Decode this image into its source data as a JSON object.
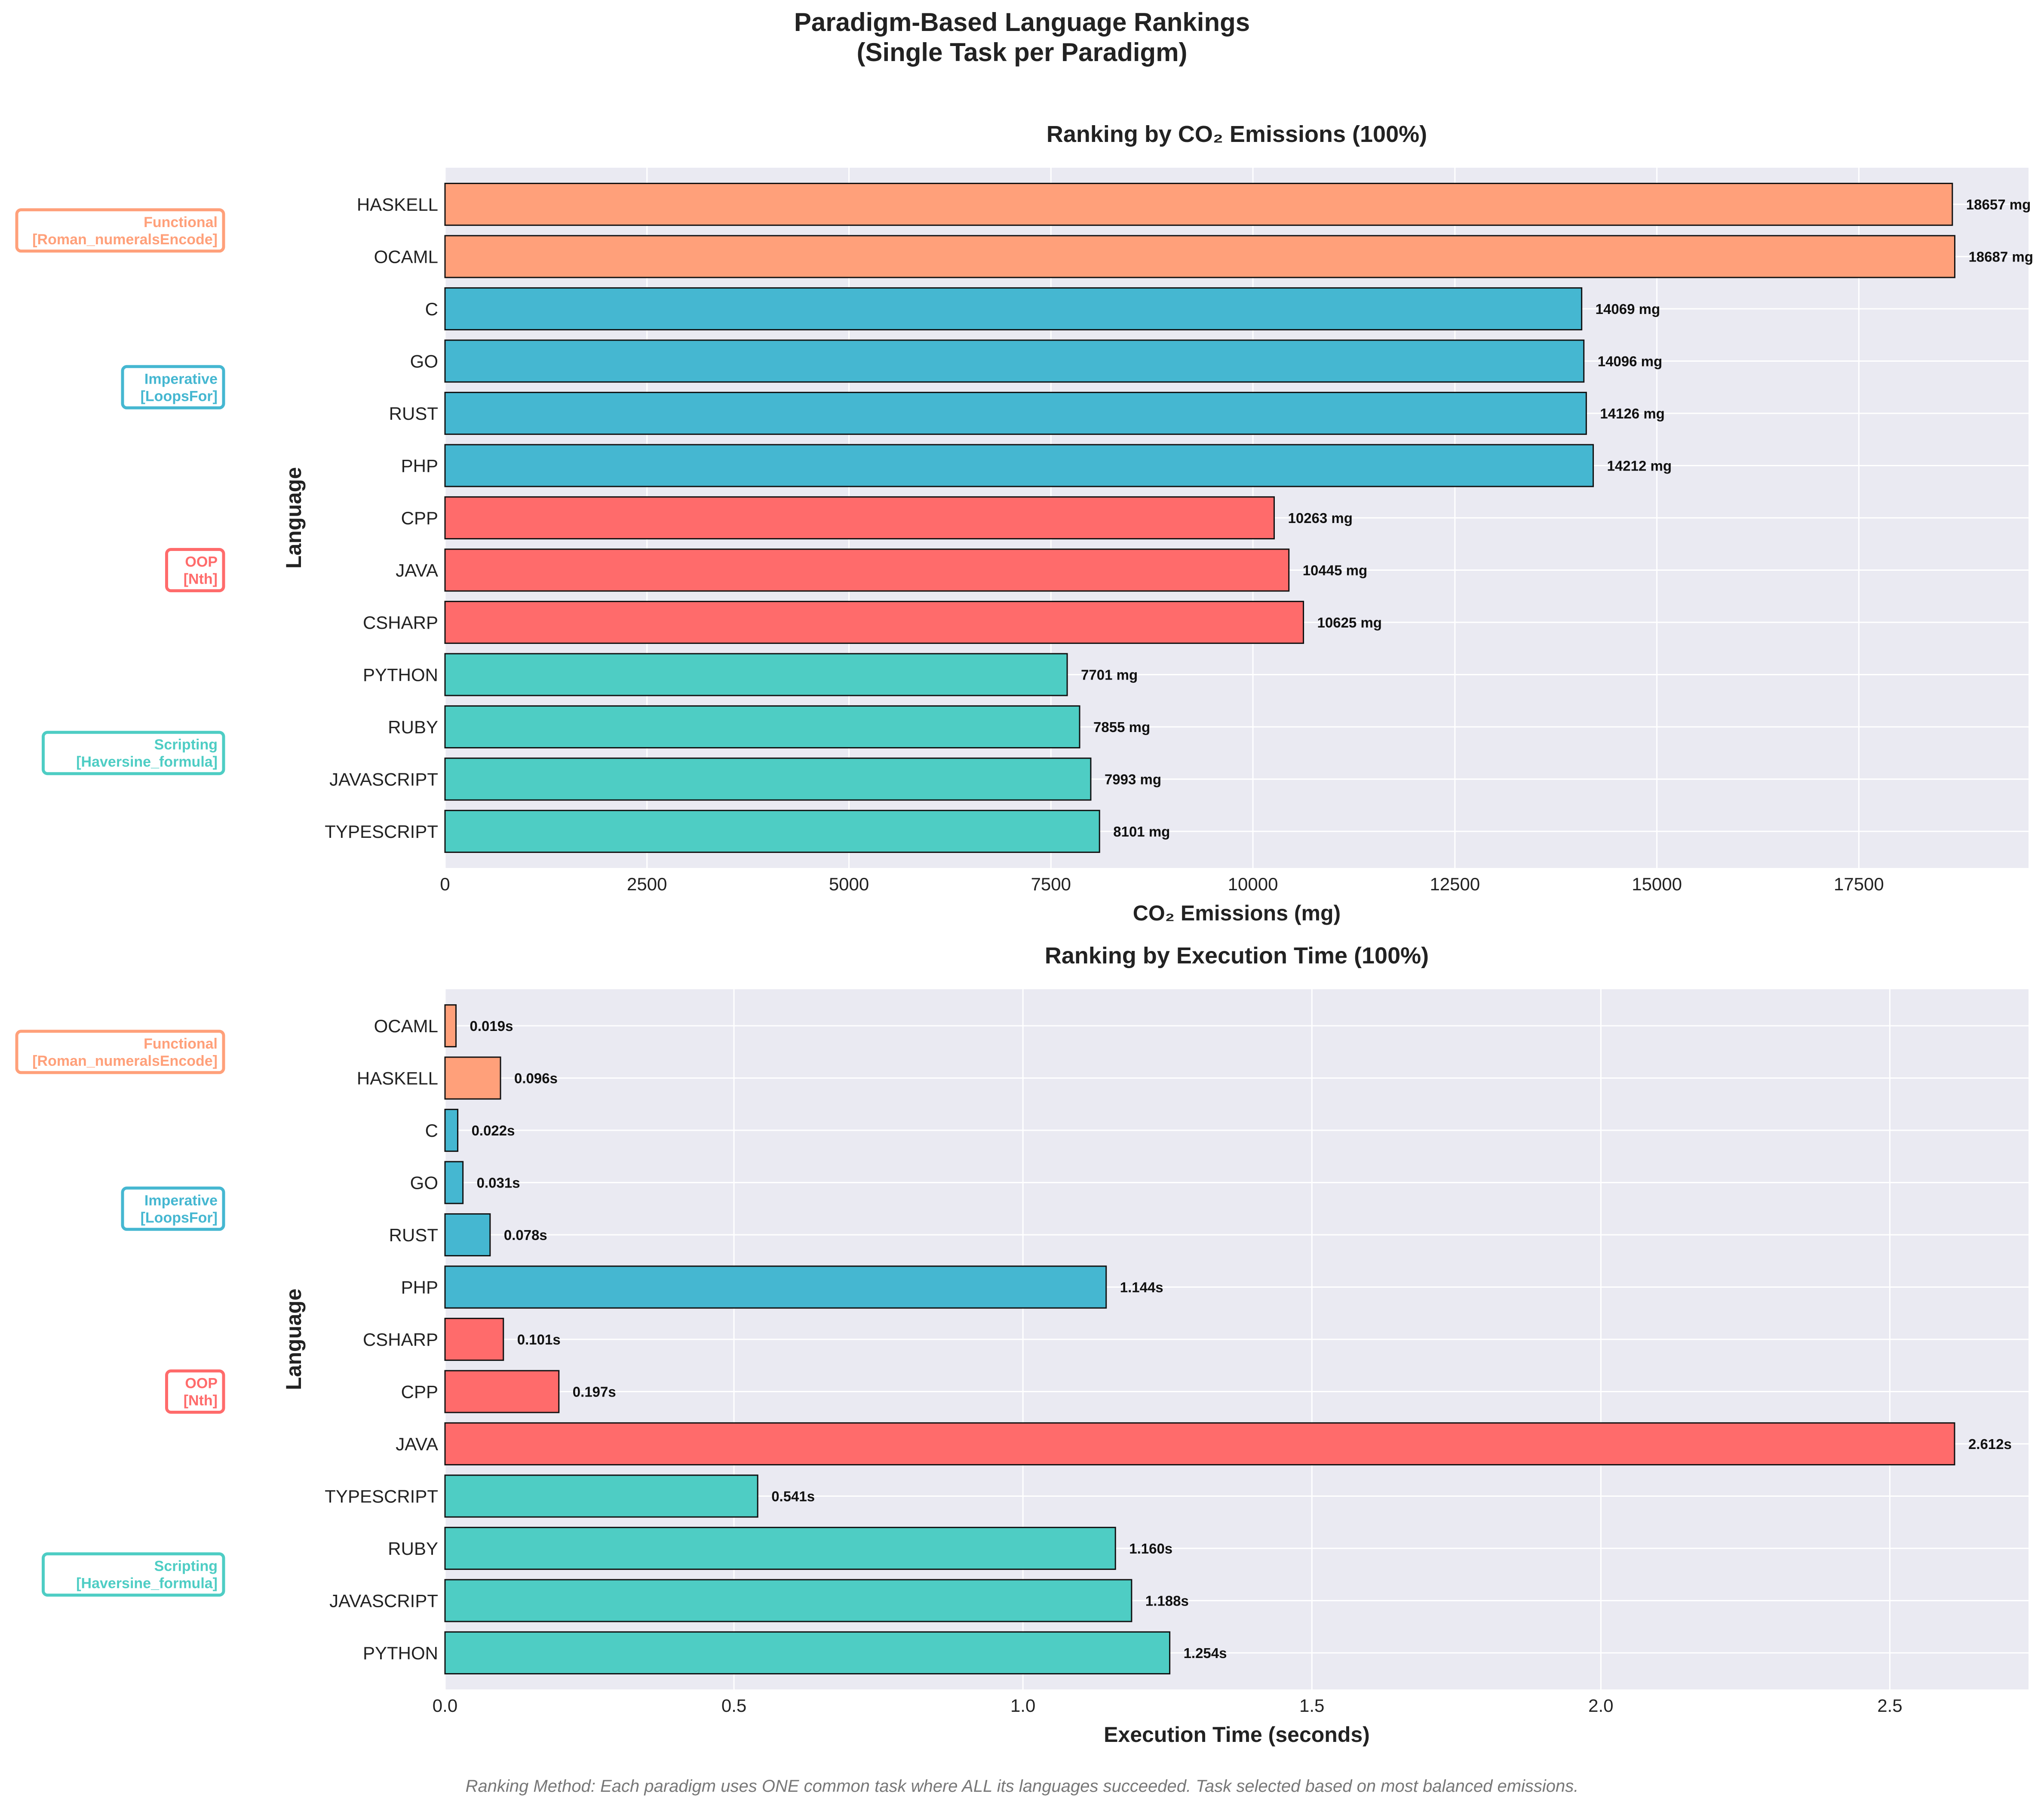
{
  "figure": {
    "title_line1": "Paradigm-Based Language Rankings",
    "title_line2": "(Single Task per Paradigm)",
    "footnote": "Ranking Method: Each paradigm uses ONE common task where ALL its languages succeeded. Task selected based on most balanced emissions."
  },
  "colors": {
    "Functional": "#FFA07A",
    "Imperative": "#45B7D1",
    "OOP": "#FF6B6B",
    "Scripting": "#4ECDC4",
    "plot_background": "#EAEAF2",
    "grid": "#FFFFFF"
  },
  "paradigm_labels": {
    "Functional": [
      "Functional",
      "[Roman_numeralsEncode]"
    ],
    "Imperative": [
      "Imperative",
      "[LoopsFor]"
    ],
    "OOP": [
      "OOP",
      "[Nth]"
    ],
    "Scripting": [
      "Scripting",
      "[Haversine_formula]"
    ]
  },
  "chart_data": [
    {
      "type": "bar",
      "orientation": "horizontal",
      "title": "Ranking by CO₂ Emissions (100%)",
      "xlabel": "CO₂ Emissions (mg)",
      "ylabel": "Language",
      "xlim": [
        0,
        19600
      ],
      "xticks": [
        0,
        2500,
        5000,
        7500,
        10000,
        12500,
        15000,
        17500
      ],
      "grid": true,
      "value_suffix": " mg",
      "value_decimals": 0,
      "categories": [
        "HASKELL",
        "OCAML",
        "C",
        "GO",
        "RUST",
        "PHP",
        "CPP",
        "JAVA",
        "CSHARP",
        "PYTHON",
        "RUBY",
        "JAVASCRIPT",
        "TYPESCRIPT"
      ],
      "values": [
        18657,
        18687,
        14069,
        14096,
        14126,
        14212,
        10263,
        10445,
        10625,
        7701,
        7855,
        7993,
        8101
      ],
      "paradigm": [
        "Functional",
        "Functional",
        "Imperative",
        "Imperative",
        "Imperative",
        "Imperative",
        "OOP",
        "OOP",
        "OOP",
        "Scripting",
        "Scripting",
        "Scripting",
        "Scripting"
      ]
    },
    {
      "type": "bar",
      "orientation": "horizontal",
      "title": "Ranking by Execution Time (100%)",
      "xlabel": "Execution Time (seconds)",
      "ylabel": "Language",
      "xlim": [
        0,
        2.74
      ],
      "xticks": [
        0,
        0.5,
        1.0,
        1.5,
        2.0,
        2.5
      ],
      "xtick_decimals": 1,
      "grid": true,
      "value_suffix": "s",
      "value_decimals": 3,
      "categories": [
        "OCAML",
        "HASKELL",
        "C",
        "GO",
        "RUST",
        "PHP",
        "CSHARP",
        "CPP",
        "JAVA",
        "TYPESCRIPT",
        "RUBY",
        "JAVASCRIPT",
        "PYTHON"
      ],
      "values": [
        0.019,
        0.096,
        0.022,
        0.031,
        0.078,
        1.144,
        0.101,
        0.197,
        2.612,
        0.541,
        1.16,
        1.188,
        1.254
      ],
      "paradigm": [
        "Functional",
        "Functional",
        "Imperative",
        "Imperative",
        "Imperative",
        "Imperative",
        "OOP",
        "OOP",
        "OOP",
        "Scripting",
        "Scripting",
        "Scripting",
        "Scripting"
      ]
    }
  ]
}
